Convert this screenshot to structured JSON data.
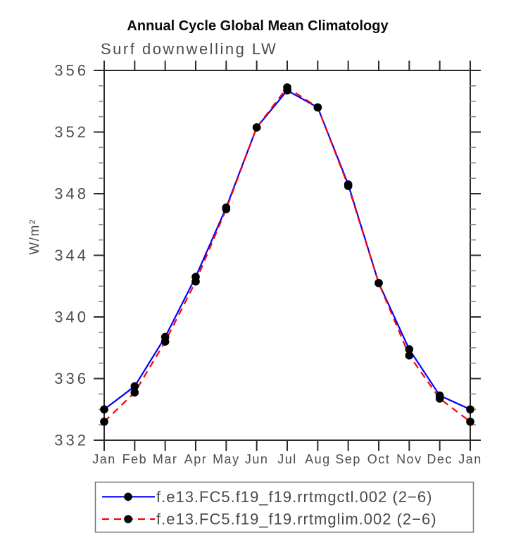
{
  "chart_data": {
    "type": "line",
    "title": "Annual Cycle Global Mean Climatology",
    "subtitle": "Surf downwelling LW",
    "ylabel": "W/m²",
    "xlabel": "",
    "categories": [
      "Jan",
      "Feb",
      "Mar",
      "Apr",
      "May",
      "Jun",
      "Jul",
      "Aug",
      "Sep",
      "Oct",
      "Nov",
      "Dec",
      "Jan"
    ],
    "ylim": [
      332,
      356
    ],
    "ytick_major_interval": 4,
    "ytick_minor_interval": 1,
    "ytick_major_labels": [
      "332",
      "336",
      "340",
      "344",
      "348",
      "352",
      "356"
    ],
    "grid": false,
    "legend_position": "bottom",
    "series": [
      {
        "name": "f.e13.FC5.f19_f19.rrtmgctl.002 (2−6)",
        "color": "#0000ff",
        "line_style": "solid",
        "marker": "black-dot",
        "marker_color": "#000000",
        "values": [
          334.0,
          335.5,
          338.7,
          342.6,
          347.1,
          352.3,
          354.7,
          353.6,
          348.6,
          342.2,
          337.9,
          334.9,
          334.0
        ]
      },
      {
        "name": "f.e13.FC5.f19_f19.rrtmglim.002 (2−6)",
        "color": "#ff0000",
        "line_style": "dashed",
        "marker": "black-dot",
        "marker_color": "#000000",
        "values": [
          333.2,
          335.1,
          338.4,
          342.3,
          347.0,
          352.3,
          354.9,
          353.6,
          348.5,
          342.2,
          337.5,
          334.7,
          333.2
        ]
      }
    ]
  },
  "colors": {
    "background": "#ffffff",
    "axis": "#2b2b2b",
    "minor_tick": "#8a8a8a",
    "tick_label": "#4d4d4d",
    "title": "#0a0a0a",
    "subtitle": "#4d4d4d",
    "legend_border": "#777777",
    "legend_text": "#4a4a4a",
    "series_ctl": "#0000ff",
    "series_lim": "#ff0000",
    "marker": "#000000"
  }
}
